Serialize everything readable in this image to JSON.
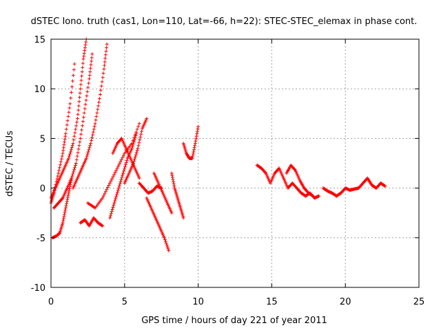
{
  "chart_data": {
    "type": "scatter",
    "title": "dSTEC Iono. truth (cas1, Lon=110, Lat=-66, h=22): STEC-STEC_elemax in phase cont.",
    "xlabel": "GPS time / hours of day 221 of year 2011",
    "ylabel": "dSTEC  / TECUs",
    "xlim": [
      0,
      25
    ],
    "ylim": [
      -10,
      15
    ],
    "x_ticks": [
      "0",
      "5",
      "10",
      "15",
      "20",
      "25"
    ],
    "y_ticks": [
      "-10",
      "-5",
      "0",
      "5",
      "10",
      "15"
    ],
    "x_tick_values": [
      0,
      5,
      10,
      15,
      20,
      25
    ],
    "y_tick_values": [
      -10,
      -5,
      0,
      5,
      10,
      15
    ],
    "grid": true,
    "marker": "+",
    "colors": {
      "series": "#ff0000",
      "grid": "#a0a0a0",
      "axes": "#000000"
    },
    "series": [
      {
        "name": "",
        "segments": [
          {
            "x": [
              0.0,
              0.2,
              0.5,
              0.8,
              1.0,
              1.3,
              1.6
            ],
            "y": [
              -1.5,
              -0.5,
              1.5,
              3.5,
              5.5,
              8.5,
              12.5
            ]
          },
          {
            "x": [
              0.0,
              0.3,
              0.6,
              0.9,
              1.2,
              1.5,
              1.8,
              2.0,
              2.2,
              2.4
            ],
            "y": [
              -1.0,
              0.0,
              1.0,
              2.0,
              3.0,
              4.5,
              7.0,
              10.0,
              13.0,
              15.0
            ]
          },
          {
            "x": [
              0.2,
              0.5,
              0.8,
              1.1,
              1.4,
              1.7,
              2.0,
              2.3,
              2.6,
              2.8
            ],
            "y": [
              -2.0,
              -1.5,
              -1.0,
              0.0,
              1.0,
              2.5,
              5.0,
              8.0,
              11.0,
              13.5
            ]
          },
          {
            "x": [
              1.5,
              1.8,
              2.1,
              2.4,
              2.7,
              3.0,
              3.3,
              3.6,
              3.8
            ],
            "y": [
              0.0,
              1.0,
              2.0,
              3.0,
              4.5,
              6.5,
              9.0,
              12.0,
              14.5
            ]
          },
          {
            "x": [
              0.1,
              0.4,
              0.6,
              0.8,
              1.0,
              1.2,
              1.4
            ],
            "y": [
              -5.0,
              -4.8,
              -4.5,
              -3.5,
              -2.0,
              -0.5,
              1.0
            ]
          },
          {
            "x": [
              2.0,
              2.3,
              2.6,
              2.9,
              3.2,
              3.5
            ],
            "y": [
              -3.5,
              -3.2,
              -3.8,
              -3.0,
              -3.5,
              -3.8
            ]
          },
          {
            "x": [
              2.5,
              3.0,
              3.5,
              4.0,
              4.5,
              5.0,
              5.5,
              6.0
            ],
            "y": [
              -1.5,
              -2.0,
              -1.0,
              0.5,
              2.0,
              3.5,
              4.5,
              6.5
            ]
          },
          {
            "x": [
              4.0,
              4.3,
              4.6,
              4.9,
              5.2,
              5.5,
              5.8
            ],
            "y": [
              -3.0,
              -1.5,
              0.0,
              1.5,
              3.0,
              4.0,
              5.5
            ]
          },
          {
            "x": [
              4.2,
              4.5,
              4.8,
              5.1,
              5.4,
              5.7,
              6.0
            ],
            "y": [
              3.5,
              4.5,
              5.0,
              4.0,
              3.0,
              2.0,
              1.0
            ]
          },
          {
            "x": [
              5.0,
              5.3,
              5.6,
              5.9,
              6.2,
              6.5
            ],
            "y": [
              0.5,
              1.5,
              2.5,
              4.0,
              6.0,
              7.0
            ]
          },
          {
            "x": [
              6.0,
              6.3,
              6.6,
              6.9,
              7.2,
              7.5
            ],
            "y": [
              0.5,
              0.0,
              -0.5,
              -0.3,
              0.2,
              0.0
            ]
          },
          {
            "x": [
              6.5,
              6.8,
              7.1,
              7.4,
              7.7,
              8.0
            ],
            "y": [
              -1.0,
              -2.0,
              -3.0,
              -4.0,
              -5.0,
              -6.3
            ]
          },
          {
            "x": [
              7.0,
              7.3,
              7.6,
              7.9,
              8.2
            ],
            "y": [
              1.5,
              0.5,
              -0.5,
              -1.5,
              -2.5
            ]
          },
          {
            "x": [
              8.2,
              8.4,
              8.6,
              8.8,
              9.0
            ],
            "y": [
              1.5,
              0.0,
              -1.0,
              -2.0,
              -3.0
            ]
          },
          {
            "x": [
              9.0,
              9.2,
              9.4,
              9.6,
              9.8,
              10.0
            ],
            "y": [
              4.5,
              3.5,
              3.0,
              3.0,
              4.5,
              6.2
            ]
          },
          {
            "x": [
              14.0,
              14.3,
              14.6,
              14.9,
              15.2,
              15.5,
              15.8,
              16.1,
              16.4,
              16.7,
              17.0,
              17.3,
              17.6,
              17.9,
              18.2
            ],
            "y": [
              2.3,
              2.0,
              1.5,
              0.5,
              1.5,
              2.0,
              1.0,
              0.0,
              0.5,
              0.0,
              -0.5,
              -0.8,
              -0.5,
              -1.0,
              -0.8
            ]
          },
          {
            "x": [
              16.0,
              16.3,
              16.6,
              16.9,
              17.2,
              17.5,
              17.8
            ],
            "y": [
              1.5,
              2.3,
              1.8,
              0.8,
              0.0,
              -0.5,
              -0.8
            ]
          },
          {
            "x": [
              18.5,
              18.8,
              19.1,
              19.4,
              19.7,
              20.0,
              20.3,
              20.6,
              20.9,
              21.2,
              21.5,
              21.8,
              22.1,
              22.4,
              22.7
            ],
            "y": [
              0.0,
              -0.3,
              -0.5,
              -0.8,
              -0.5,
              0.0,
              -0.2,
              -0.1,
              0.0,
              0.5,
              1.0,
              0.3,
              0.0,
              0.5,
              0.2
            ]
          }
        ]
      }
    ]
  }
}
